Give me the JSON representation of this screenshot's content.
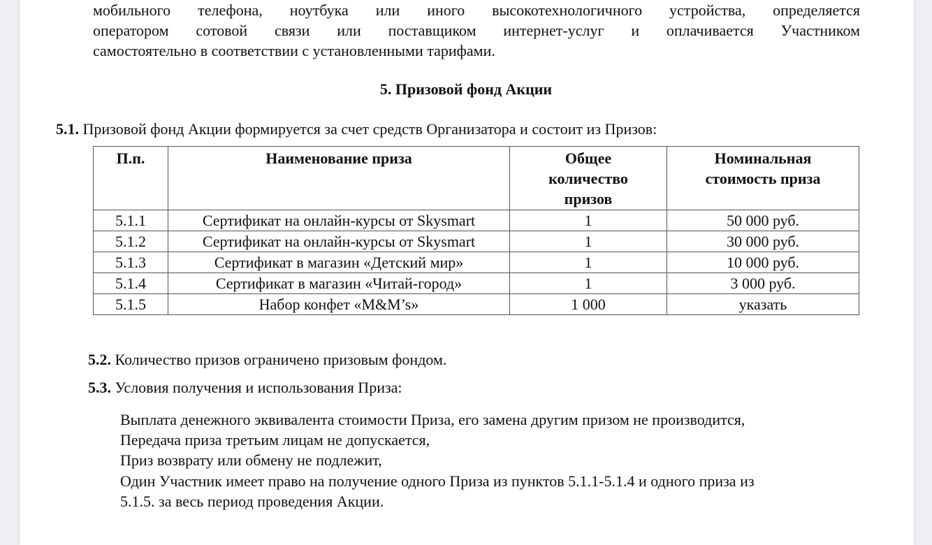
{
  "intro_lines": [
    "мобильного телефона, ноутбука или иного высокотехнологичного устройства, определяется",
    "оператором сотовой связи или поставщиком интернет-услуг и оплачивается Участником",
    "самостоятельно в соответствии с установленными тарифами."
  ],
  "section_title": "5. Призовой фонд Акции",
  "p51": {
    "num": "5.1.",
    "text": "Призовой фонд Акции формируется за счет средств Организатора и состоит из Призов:"
  },
  "table": {
    "headers": [
      "П.п.",
      "Наименование приза",
      "Общее количество призов",
      "Номинальная стоимость приза"
    ],
    "rows": [
      [
        "5.1.1",
        "Сертификат на онлайн-курсы от Skysmart",
        "1",
        "50 000 руб."
      ],
      [
        "5.1.2",
        "Сертификат на онлайн-курсы от Skysmart",
        "1",
        "30 000 руб."
      ],
      [
        "5.1.3",
        "Сертификат в магазин «Детский мир»",
        "1",
        "10 000 руб."
      ],
      [
        "5.1.4",
        "Сертификат в магазин «Читай-город»",
        "1",
        "3 000 руб."
      ],
      [
        "5.1.5",
        "Набор конфет «M&M’s»",
        "1 000",
        "указать"
      ]
    ]
  },
  "p52": {
    "num": "5.2.",
    "text": "Количество призов ограничено призовым фондом."
  },
  "p53": {
    "num": "5.3.",
    "text": "Условия получения и использования Приза:"
  },
  "conditions": [
    "Выплата денежного эквивалента стоимости Приза, его замена другим призом не производится,",
    "Передача приза третьим лицам не допускается,",
    "Приз возврату или обмену не подлежит,",
    "Один Участник имеет право на получение одного Приза из пунктов 5.1.1-5.1.4 и одного приза из",
    "5.1.5. за весь период проведения Акции."
  ]
}
